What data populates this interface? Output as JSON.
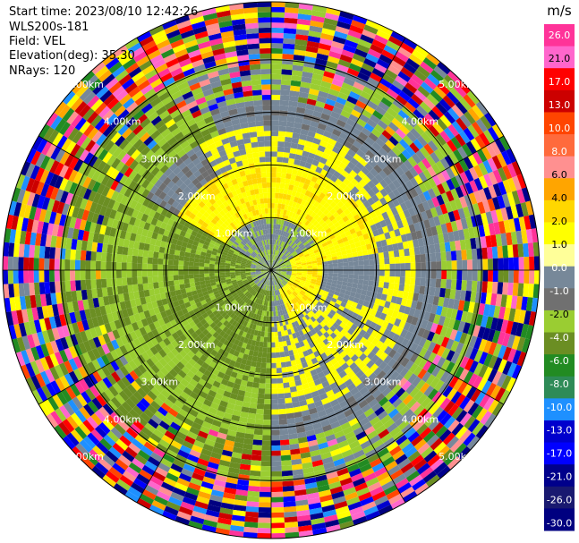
{
  "header": {
    "start_time": "Start time: 2023/08/10 12:42:26",
    "station": "WLS200s-181",
    "field": "Field: VEL",
    "elevation": "Elevation(deg): 35.30",
    "nrays": "NRays: 120"
  },
  "chart_data": {
    "type": "heatmap",
    "projection": "polar PPI (range-azimuth)",
    "field": "VEL",
    "units": "m/s",
    "elevation_deg": 35.3,
    "n_rays": 120,
    "range_rings_km": [
      1.0,
      2.0,
      3.0,
      4.0,
      5.0
    ],
    "range_ring_labels": [
      "1.00km",
      "2.00km",
      "3.00km",
      "4.00km",
      "5.00km"
    ],
    "max_range_km": 5.0,
    "spokes_deg": [
      0,
      30,
      60,
      90,
      120,
      150,
      180,
      210,
      240,
      270,
      300,
      330
    ],
    "colorbar": {
      "title": "m/s",
      "ticks": [
        "26.0",
        "21.0",
        "17.0",
        "13.0",
        "10.0",
        "8.0",
        "6.0",
        "4.0",
        "2.0",
        "1.0",
        "0.0",
        "-1.0",
        "-2.0",
        "-4.0",
        "-6.0",
        "-8.0",
        "-10.0",
        "-13.0",
        "-17.0",
        "-21.0",
        "-26.0",
        "-30.0"
      ],
      "colors": [
        "#ff3399",
        "#ff66cc",
        "#ff0000",
        "#cc0000",
        "#ff4500",
        "#ff6a3c",
        "#ff9090",
        "#ffa500",
        "#ffd700",
        "#ffff00",
        "#ffff99",
        "#778899",
        "#707070",
        "#9acd32",
        "#6b8e23",
        "#228b22",
        "#2e8b57",
        "#1e90ff",
        "#0000cd",
        "#0000ff",
        "#00008b",
        "#191970",
        "#000080"
      ]
    }
  }
}
